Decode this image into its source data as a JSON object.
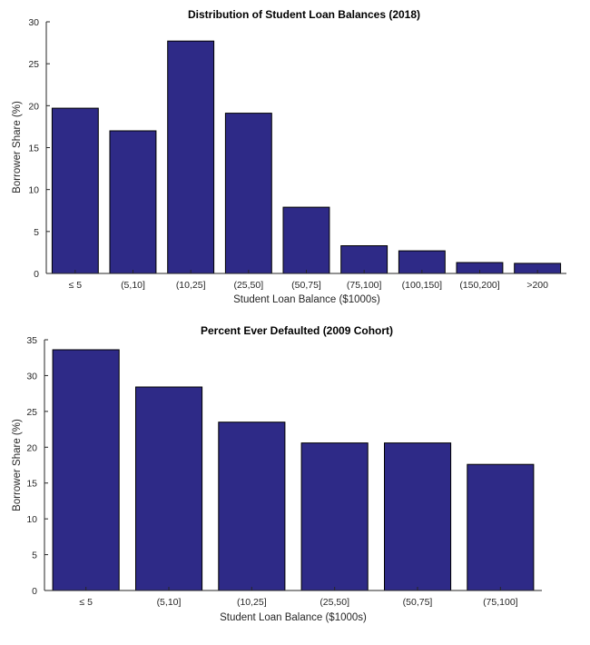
{
  "chart_data": [
    {
      "type": "bar",
      "title": "Distribution of Student Loan Balances (2018)",
      "xlabel": "Student Loan Balance ($1000s)",
      "ylabel": "Borrower Share (%)",
      "categories": [
        "≤ 5",
        "(5,10]",
        "(10,25]",
        "(25,50]",
        "(50,75]",
        "(75,100]",
        "(100,150]",
        "(150,200]",
        ">200"
      ],
      "values": [
        19.7,
        17.0,
        27.7,
        19.1,
        7.9,
        3.3,
        2.7,
        1.3,
        1.2
      ],
      "ylim": [
        0,
        30
      ],
      "yticks": [
        0,
        5,
        10,
        15,
        20,
        25,
        30
      ],
      "grid": false,
      "bar_color": "#2e2a87"
    },
    {
      "type": "bar",
      "title": "Percent Ever Defaulted (2009 Cohort)",
      "xlabel": "Student Loan Balance ($1000s)",
      "ylabel": "Borrower Share (%)",
      "categories": [
        "≤ 5",
        "(5,10]",
        "(10,25]",
        "(25,50]",
        "(50,75]",
        "(75,100]"
      ],
      "values": [
        33.6,
        28.4,
        23.5,
        20.6,
        20.6,
        17.6
      ],
      "ylim": [
        0,
        35
      ],
      "yticks": [
        0,
        5,
        10,
        15,
        20,
        25,
        30,
        35
      ],
      "grid": false,
      "bar_color": "#2e2a87"
    }
  ]
}
